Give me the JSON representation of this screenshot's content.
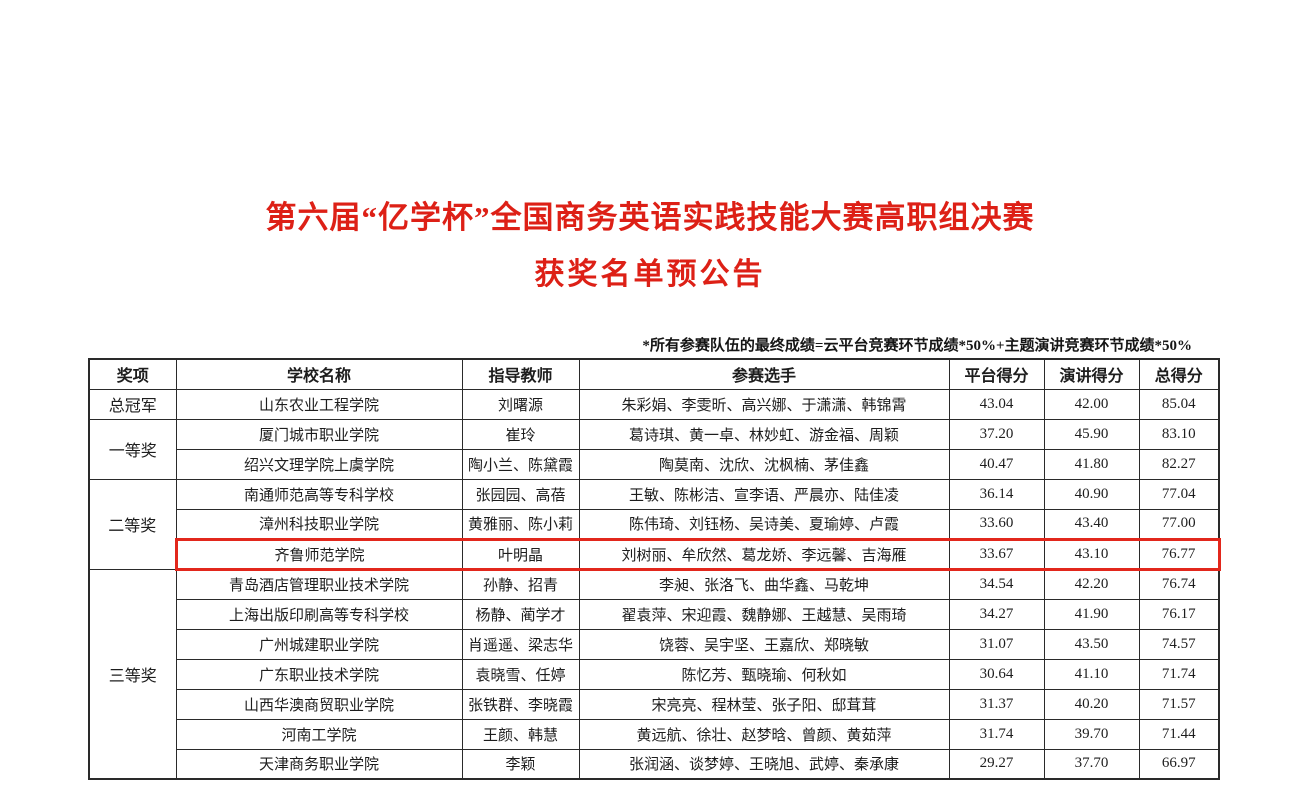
{
  "title": "第六届“亿学杯”全国商务英语实践技能大赛高职组决赛",
  "subtitle": "获奖名单预公告",
  "note": "*所有参赛队伍的最终成绩=云平台竞赛环节成绩*50%+主题演讲竞赛环节成绩*50%",
  "colors": {
    "title_red": "#dd2016",
    "highlight_red": "#e2271c",
    "table_border": "#2a2a2a"
  },
  "table": {
    "headers": [
      "奖项",
      "学校名称",
      "指导教师",
      "参赛选手",
      "平台得分",
      "演讲得分",
      "总得分"
    ],
    "rows": [
      {
        "award": "总冠军",
        "award_rowspan": 1,
        "school": "山东农业工程学院",
        "teacher": "刘曙源",
        "contestants": "朱彩娟、李雯昕、高兴娜、于潇潇、韩锦霄",
        "platform": "43.04",
        "speech": "42.00",
        "total": "85.04",
        "highlighted": false
      },
      {
        "award": "一等奖",
        "award_rowspan": 2,
        "school": "厦门城市职业学院",
        "teacher": "崔玲",
        "contestants": "葛诗琪、黄一卓、林妙虹、游金福、周颖",
        "platform": "37.20",
        "speech": "45.90",
        "total": "83.10",
        "highlighted": false
      },
      {
        "school": "绍兴文理学院上虞学院",
        "teacher": "陶小兰、陈黛霞",
        "contestants": "陶莫南、沈欣、沈枫楠、茅佳鑫",
        "platform": "40.47",
        "speech": "41.80",
        "total": "82.27",
        "highlighted": false
      },
      {
        "award": "二等奖",
        "award_rowspan": 3,
        "school": "南通师范高等专科学校",
        "teacher": "张园园、高蓓",
        "contestants": "王敏、陈彬洁、宣李语、严晨亦、陆佳凌",
        "platform": "36.14",
        "speech": "40.90",
        "total": "77.04",
        "highlighted": false
      },
      {
        "school": "漳州科技职业学院",
        "teacher": "黄雅丽、陈小莉",
        "contestants": "陈伟琦、刘钰杨、吴诗美、夏瑜婷、卢霞",
        "platform": "33.60",
        "speech": "43.40",
        "total": "77.00",
        "highlighted": false
      },
      {
        "school": "齐鲁师范学院",
        "teacher": "叶明晶",
        "contestants": "刘树丽、牟欣然、葛龙娇、李远馨、吉海雁",
        "platform": "33.67",
        "speech": "43.10",
        "total": "76.77",
        "highlighted": true
      },
      {
        "award": "三等奖",
        "award_rowspan": 7,
        "school": "青岛酒店管理职业技术学院",
        "teacher": "孙静、招青",
        "contestants": "李昶、张洛飞、曲华鑫、马乾坤",
        "platform": "34.54",
        "speech": "42.20",
        "total": "76.74",
        "highlighted": false
      },
      {
        "school": "上海出版印刷高等专科学校",
        "teacher": "杨静、蔺学才",
        "contestants": "翟袁萍、宋迎霞、魏静娜、王越慧、吴雨琦",
        "platform": "34.27",
        "speech": "41.90",
        "total": "76.17",
        "highlighted": false
      },
      {
        "school": "广州城建职业学院",
        "teacher": "肖遥遥、梁志华",
        "contestants": "饶蓉、吴宇坚、王嘉欣、郑晓敏",
        "platform": "31.07",
        "speech": "43.50",
        "total": "74.57",
        "highlighted": false
      },
      {
        "school": "广东职业技术学院",
        "teacher": "袁晓雪、任婷",
        "contestants": "陈忆芳、甄晓瑜、何秋如",
        "platform": "30.64",
        "speech": "41.10",
        "total": "71.74",
        "highlighted": false
      },
      {
        "school": "山西华澳商贸职业学院",
        "teacher": "张铁群、李晓霞",
        "contestants": "宋亮亮、程林莹、张子阳、邸茸茸",
        "platform": "31.37",
        "speech": "40.20",
        "total": "71.57",
        "highlighted": false
      },
      {
        "school": "河南工学院",
        "teacher": "王颜、韩慧",
        "contestants": "黄远航、徐壮、赵梦晗、曾颜、黄茹萍",
        "platform": "31.74",
        "speech": "39.70",
        "total": "71.44",
        "highlighted": false
      },
      {
        "school": "天津商务职业学院",
        "teacher": "李颖",
        "contestants": "张润涵、谈梦婷、王晓旭、武婷、秦承康",
        "platform": "29.27",
        "speech": "37.70",
        "total": "66.97",
        "highlighted": false
      }
    ]
  }
}
